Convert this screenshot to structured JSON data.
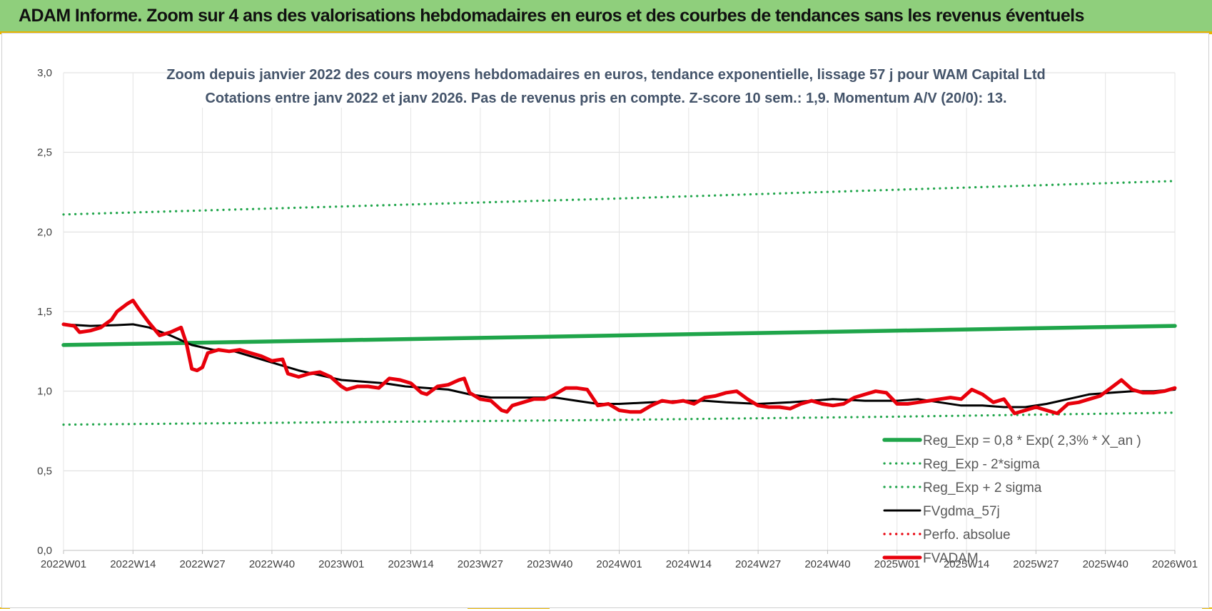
{
  "header": {
    "title": "ADAM Informe. Zoom sur 4 ans des valorisations hebdomadaires en euros et des courbes de tendances sans les revenus éventuels"
  },
  "colors": {
    "green": "#1fa54a",
    "black": "#000000",
    "red": "#e8000b",
    "header_bg": "#8fcf7c",
    "grid": "#e0e0e0",
    "text": "#404040"
  },
  "chart_data": {
    "type": "line",
    "title": "Zoom depuis janvier 2022 des cours moyens hebdomadaires en euros, tendance exponentielle, lissage 57 j pour WAM Capital Ltd",
    "subtitle": "Cotations entre janv 2022 et janv 2026. Pas de revenus pris en compte. Z-score 10 sem.: 1,9. Momentum A/V (20/0): 13.",
    "xlabel": "",
    "ylabel": "",
    "ylim": [
      0,
      3
    ],
    "yticks": [
      "0,0",
      "0,5",
      "1,0",
      "1,5",
      "2,0",
      "2,5",
      "3,0"
    ],
    "xlim": [
      0,
      208
    ],
    "xticks": [
      {
        "i": 0,
        "label": "2022W01"
      },
      {
        "i": 13,
        "label": "2022W14"
      },
      {
        "i": 26,
        "label": "2022W27"
      },
      {
        "i": 39,
        "label": "2022W40"
      },
      {
        "i": 52,
        "label": "2023W01"
      },
      {
        "i": 65,
        "label": "2023W14"
      },
      {
        "i": 78,
        "label": "2023W27"
      },
      {
        "i": 91,
        "label": "2023W40"
      },
      {
        "i": 104,
        "label": "2024W01"
      },
      {
        "i": 117,
        "label": "2024W14"
      },
      {
        "i": 130,
        "label": "2024W27"
      },
      {
        "i": 143,
        "label": "2024W40"
      },
      {
        "i": 156,
        "label": "2025W01"
      },
      {
        "i": 169,
        "label": "2025W14"
      },
      {
        "i": 182,
        "label": "2025W27"
      },
      {
        "i": 195,
        "label": "2025W40"
      },
      {
        "i": 208,
        "label": "2026W01"
      }
    ],
    "series": [
      {
        "name": "Reg_Exp = 0,8 * Exp( 2,3% * X_an )",
        "style": "solid-thick",
        "color": "#1fa54a",
        "points": [
          [
            0,
            1.29
          ],
          [
            26,
            1.305
          ],
          [
            52,
            1.32
          ],
          [
            78,
            1.335
          ],
          [
            104,
            1.35
          ],
          [
            130,
            1.365
          ],
          [
            156,
            1.38
          ],
          [
            182,
            1.395
          ],
          [
            208,
            1.41
          ]
        ]
      },
      {
        "name": "Reg_Exp - 2*sigma",
        "style": "dotted",
        "color": "#1fa54a",
        "points": [
          [
            0,
            0.79
          ],
          [
            52,
            0.805
          ],
          [
            104,
            0.82
          ],
          [
            156,
            0.84
          ],
          [
            208,
            0.865
          ]
        ]
      },
      {
        "name": "Reg_Exp + 2 sigma",
        "style": "dotted",
        "color": "#1fa54a",
        "points": [
          [
            0,
            2.11
          ],
          [
            52,
            2.16
          ],
          [
            104,
            2.21
          ],
          [
            156,
            2.265
          ],
          [
            208,
            2.32
          ]
        ]
      },
      {
        "name": "FVgdma_57j",
        "style": "solid",
        "color": "#000000",
        "points": [
          [
            0,
            1.42
          ],
          [
            5,
            1.41
          ],
          [
            10,
            1.415
          ],
          [
            13,
            1.42
          ],
          [
            16,
            1.4
          ],
          [
            20,
            1.35
          ],
          [
            24,
            1.29
          ],
          [
            28,
            1.26
          ],
          [
            32,
            1.25
          ],
          [
            36,
            1.21
          ],
          [
            40,
            1.17
          ],
          [
            44,
            1.13
          ],
          [
            48,
            1.1
          ],
          [
            52,
            1.07
          ],
          [
            56,
            1.06
          ],
          [
            60,
            1.05
          ],
          [
            64,
            1.03
          ],
          [
            68,
            1.02
          ],
          [
            72,
            1.01
          ],
          [
            76,
            0.98
          ],
          [
            80,
            0.96
          ],
          [
            84,
            0.96
          ],
          [
            88,
            0.96
          ],
          [
            92,
            0.96
          ],
          [
            96,
            0.94
          ],
          [
            100,
            0.92
          ],
          [
            104,
            0.92
          ],
          [
            110,
            0.93
          ],
          [
            116,
            0.94
          ],
          [
            120,
            0.94
          ],
          [
            124,
            0.93
          ],
          [
            130,
            0.92
          ],
          [
            136,
            0.93
          ],
          [
            140,
            0.94
          ],
          [
            144,
            0.95
          ],
          [
            150,
            0.94
          ],
          [
            156,
            0.94
          ],
          [
            160,
            0.95
          ],
          [
            164,
            0.93
          ],
          [
            168,
            0.91
          ],
          [
            172,
            0.91
          ],
          [
            176,
            0.9
          ],
          [
            180,
            0.9
          ],
          [
            184,
            0.92
          ],
          [
            188,
            0.95
          ],
          [
            192,
            0.98
          ],
          [
            196,
            0.99
          ],
          [
            200,
            1.0
          ],
          [
            204,
            1.0
          ],
          [
            208,
            1.01
          ]
        ]
      },
      {
        "name": "Perfo. absolue",
        "style": "dotted",
        "color": "#e8000b",
        "points": []
      },
      {
        "name": "FVADAM",
        "style": "solid-thick",
        "color": "#e8000b",
        "points": [
          [
            0,
            1.42
          ],
          [
            2,
            1.41
          ],
          [
            3,
            1.37
          ],
          [
            5,
            1.38
          ],
          [
            7,
            1.4
          ],
          [
            9,
            1.45
          ],
          [
            10,
            1.5
          ],
          [
            12,
            1.55
          ],
          [
            13,
            1.57
          ],
          [
            14,
            1.52
          ],
          [
            16,
            1.43
          ],
          [
            18,
            1.35
          ],
          [
            20,
            1.37
          ],
          [
            22,
            1.4
          ],
          [
            23,
            1.3
          ],
          [
            24,
            1.14
          ],
          [
            25,
            1.13
          ],
          [
            26,
            1.15
          ],
          [
            27,
            1.24
          ],
          [
            29,
            1.26
          ],
          [
            31,
            1.25
          ],
          [
            33,
            1.26
          ],
          [
            35,
            1.24
          ],
          [
            37,
            1.22
          ],
          [
            39,
            1.19
          ],
          [
            41,
            1.2
          ],
          [
            42,
            1.11
          ],
          [
            44,
            1.09
          ],
          [
            46,
            1.11
          ],
          [
            48,
            1.12
          ],
          [
            50,
            1.09
          ],
          [
            52,
            1.03
          ],
          [
            53,
            1.01
          ],
          [
            55,
            1.03
          ],
          [
            57,
            1.03
          ],
          [
            59,
            1.02
          ],
          [
            61,
            1.08
          ],
          [
            63,
            1.07
          ],
          [
            65,
            1.05
          ],
          [
            67,
            0.99
          ],
          [
            68,
            0.98
          ],
          [
            70,
            1.03
          ],
          [
            72,
            1.04
          ],
          [
            74,
            1.07
          ],
          [
            75,
            1.08
          ],
          [
            76,
            0.99
          ],
          [
            78,
            0.95
          ],
          [
            80,
            0.94
          ],
          [
            82,
            0.88
          ],
          [
            83,
            0.87
          ],
          [
            84,
            0.91
          ],
          [
            86,
            0.93
          ],
          [
            88,
            0.95
          ],
          [
            90,
            0.95
          ],
          [
            92,
            0.98
          ],
          [
            94,
            1.02
          ],
          [
            96,
            1.02
          ],
          [
            98,
            1.01
          ],
          [
            100,
            0.91
          ],
          [
            102,
            0.92
          ],
          [
            104,
            0.88
          ],
          [
            106,
            0.87
          ],
          [
            108,
            0.87
          ],
          [
            110,
            0.91
          ],
          [
            112,
            0.94
          ],
          [
            114,
            0.93
          ],
          [
            116,
            0.94
          ],
          [
            118,
            0.92
          ],
          [
            120,
            0.96
          ],
          [
            122,
            0.97
          ],
          [
            124,
            0.99
          ],
          [
            126,
            1.0
          ],
          [
            128,
            0.95
          ],
          [
            130,
            0.91
          ],
          [
            132,
            0.9
          ],
          [
            134,
            0.9
          ],
          [
            136,
            0.89
          ],
          [
            138,
            0.92
          ],
          [
            140,
            0.94
          ],
          [
            142,
            0.92
          ],
          [
            144,
            0.91
          ],
          [
            146,
            0.92
          ],
          [
            148,
            0.96
          ],
          [
            150,
            0.98
          ],
          [
            152,
            1.0
          ],
          [
            154,
            0.99
          ],
          [
            156,
            0.92
          ],
          [
            158,
            0.92
          ],
          [
            160,
            0.93
          ],
          [
            162,
            0.94
          ],
          [
            164,
            0.95
          ],
          [
            166,
            0.96
          ],
          [
            168,
            0.95
          ],
          [
            170,
            1.01
          ],
          [
            172,
            0.98
          ],
          [
            174,
            0.93
          ],
          [
            176,
            0.95
          ],
          [
            178,
            0.86
          ],
          [
            180,
            0.88
          ],
          [
            182,
            0.9
          ],
          [
            184,
            0.88
          ],
          [
            186,
            0.86
          ],
          [
            188,
            0.92
          ],
          [
            190,
            0.93
          ],
          [
            192,
            0.95
          ],
          [
            194,
            0.97
          ],
          [
            196,
            1.02
          ],
          [
            198,
            1.07
          ],
          [
            200,
            1.01
          ],
          [
            202,
            0.99
          ],
          [
            204,
            0.99
          ],
          [
            206,
            1.0
          ],
          [
            208,
            1.02
          ]
        ]
      }
    ],
    "legend": "bottom-right"
  }
}
